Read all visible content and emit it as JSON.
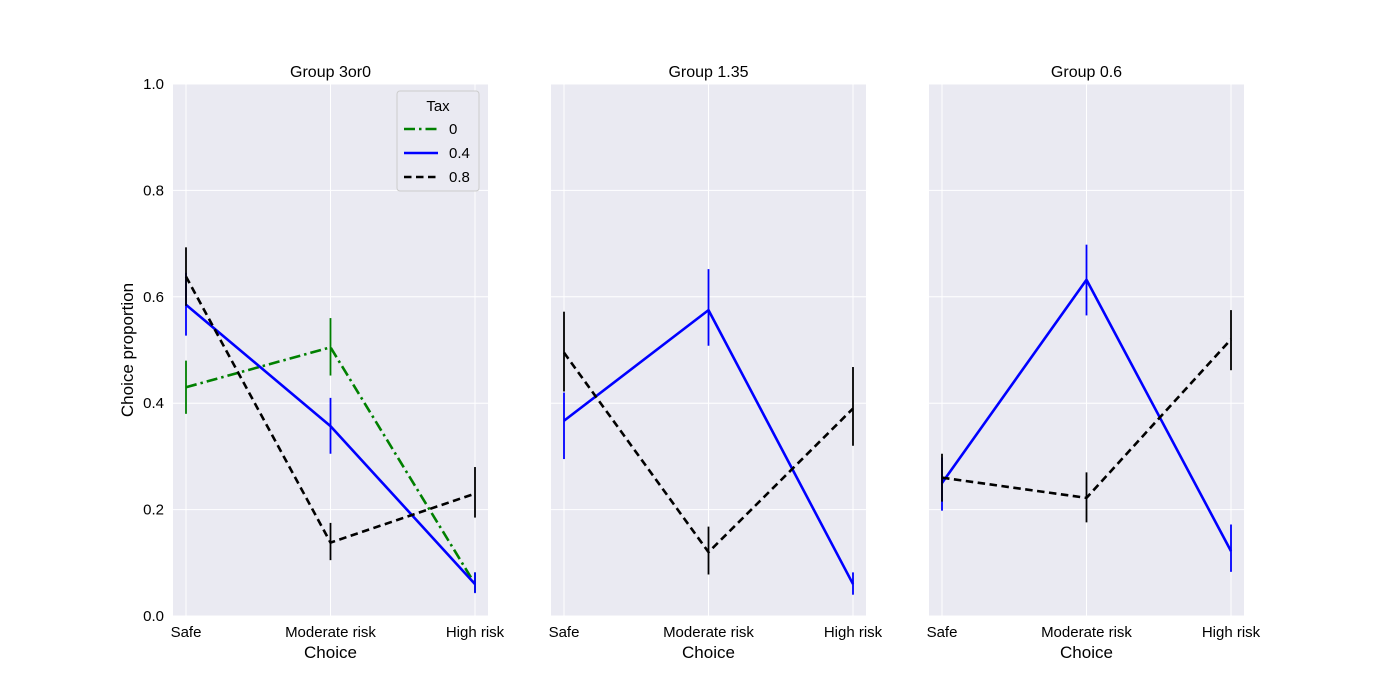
{
  "chart_data": {
    "type": "line",
    "shared_y": true,
    "ylabel": "Choice proportion",
    "ylim": [
      0,
      1.0
    ],
    "yticks": [
      "0.0",
      "0.2",
      "0.4",
      "0.6",
      "0.8",
      "1.0"
    ],
    "ytick_values": [
      0,
      0.2,
      0.4,
      0.6,
      0.8,
      1.0
    ],
    "categories": [
      "Safe",
      "Moderate risk",
      "High risk"
    ],
    "xlabel": "Choice",
    "grid": true,
    "legend": {
      "title": "Tax",
      "placement": "upper-right of first panel",
      "entries": [
        {
          "label": "0",
          "color": "#008000",
          "dash": "dashdot"
        },
        {
          "label": "0.4",
          "color": "#0000ff",
          "dash": "solid"
        },
        {
          "label": "0.8",
          "color": "#000000",
          "dash": "dashed"
        }
      ]
    },
    "panels": [
      {
        "title": "Group 3or0",
        "series": [
          {
            "tax": "0",
            "color": "#008000",
            "dash": "dashdot",
            "values": [
              0.43,
              0.505,
              0.06
            ],
            "err_low": [
              0.38,
              0.452,
              0.045
            ],
            "err_high": [
              0.48,
              0.56,
              0.082
            ]
          },
          {
            "tax": "0.4",
            "color": "#0000ff",
            "dash": "solid",
            "values": [
              0.585,
              0.357,
              0.06
            ],
            "err_low": [
              0.527,
              0.305,
              0.043
            ],
            "err_high": [
              0.645,
              0.41,
              0.082
            ]
          },
          {
            "tax": "0.8",
            "color": "#000000",
            "dash": "dashed",
            "values": [
              0.638,
              0.138,
              0.23
            ],
            "err_low": [
              0.583,
              0.105,
              0.185
            ],
            "err_high": [
              0.693,
              0.175,
              0.28
            ]
          }
        ]
      },
      {
        "title": "Group 1.35",
        "series": [
          {
            "tax": "0.4",
            "color": "#0000ff",
            "dash": "solid",
            "values": [
              0.367,
              0.575,
              0.06
            ],
            "err_low": [
              0.295,
              0.508,
              0.04
            ],
            "err_high": [
              0.42,
              0.652,
              0.082
            ]
          },
          {
            "tax": "0.8",
            "color": "#000000",
            "dash": "dashed",
            "values": [
              0.495,
              0.12,
              0.39
            ],
            "err_low": [
              0.422,
              0.078,
              0.32
            ],
            "err_high": [
              0.572,
              0.168,
              0.468
            ]
          }
        ]
      },
      {
        "title": "Group 0.6",
        "series": [
          {
            "tax": "0.4",
            "color": "#0000ff",
            "dash": "solid",
            "values": [
              0.25,
              0.632,
              0.122
            ],
            "err_low": [
              0.198,
              0.565,
              0.083
            ],
            "err_high": [
              0.298,
              0.698,
              0.172
            ]
          },
          {
            "tax": "0.8",
            "color": "#000000",
            "dash": "dashed",
            "values": [
              0.26,
              0.222,
              0.52
            ],
            "err_low": [
              0.215,
              0.176,
              0.462
            ],
            "err_high": [
              0.305,
              0.27,
              0.575
            ]
          }
        ]
      }
    ]
  }
}
